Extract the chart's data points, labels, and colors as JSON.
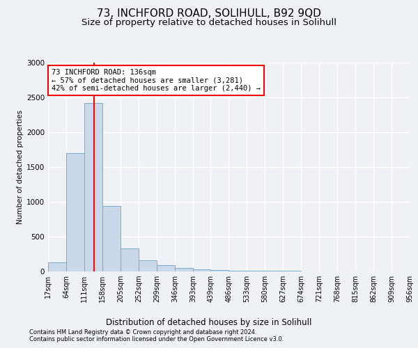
{
  "title_line1": "73, INCHFORD ROAD, SOLIHULL, B92 9QD",
  "title_line2": "Size of property relative to detached houses in Solihull",
  "xlabel": "Distribution of detached houses by size in Solihull",
  "ylabel": "Number of detached properties",
  "bar_color": "#c9d9ea",
  "bar_edge_color": "#7aaac8",
  "annotation_box_text": "73 INCHFORD ROAD: 136sqm\n← 57% of detached houses are smaller (3,281)\n42% of semi-detached houses are larger (2,440) →",
  "vline_x": 136,
  "vline_color": "red",
  "footer_line1": "Contains HM Land Registry data © Crown copyright and database right 2024.",
  "footer_line2": "Contains public sector information licensed under the Open Government Licence v3.0.",
  "bin_edges": [
    17,
    64,
    111,
    158,
    205,
    252,
    299,
    346,
    393,
    439,
    486,
    533,
    580,
    627,
    674,
    721,
    768,
    815,
    862,
    909,
    956
  ],
  "bin_counts": [
    130,
    1700,
    2420,
    940,
    330,
    160,
    90,
    55,
    35,
    20,
    15,
    10,
    8,
    6,
    5,
    4,
    3,
    2,
    2,
    1
  ],
  "ylim": [
    0,
    3000
  ],
  "yticks": [
    0,
    500,
    1000,
    1500,
    2000,
    2500,
    3000
  ],
  "background_color": "#eef2f7",
  "plot_bg_color": "#eef2f7",
  "title1_fontsize": 11,
  "title2_fontsize": 9.5,
  "grid_color": "white",
  "tick_label_fontsize": 7,
  "ann_fontsize": 7.5
}
